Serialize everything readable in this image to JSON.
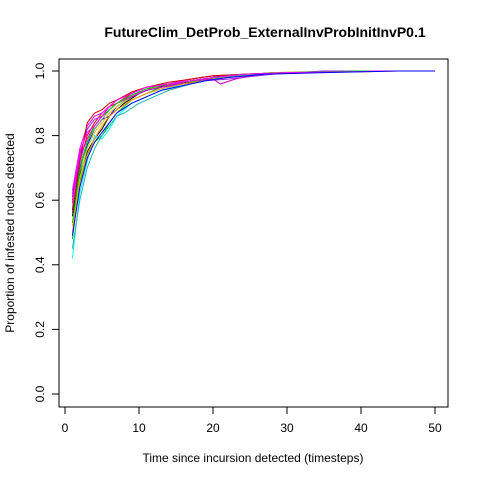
{
  "chart_data": {
    "type": "line",
    "title": "FutureClim_DetProb_ExternalInvProbInitInvP0.1",
    "xlabel": "Time since incursion detected (timesteps)",
    "ylabel": "Proportion of infested nodes detected",
    "xlim": [
      0,
      50
    ],
    "ylim": [
      0,
      1
    ],
    "xticks": [
      0,
      10,
      20,
      30,
      40,
      50
    ],
    "yticks": [
      0.0,
      0.2,
      0.4,
      0.6,
      0.8,
      1.0
    ],
    "ytick_labels": [
      "0.0",
      "0.2",
      "0.4",
      "0.6",
      "0.8",
      "1.0"
    ],
    "grid": false,
    "legend": "none",
    "series": [
      {
        "color": "#000000",
        "values": [
          [
            1,
            0.55
          ],
          [
            2,
            0.68
          ],
          [
            3,
            0.75
          ],
          [
            4,
            0.79
          ],
          [
            5,
            0.82
          ],
          [
            6,
            0.86
          ],
          [
            7,
            0.88
          ],
          [
            8,
            0.9
          ],
          [
            10,
            0.93
          ],
          [
            12,
            0.95
          ],
          [
            15,
            0.96
          ],
          [
            18,
            0.97
          ],
          [
            21,
            0.985
          ],
          [
            25,
            0.99
          ],
          [
            30,
            0.995
          ],
          [
            40,
            1.0
          ],
          [
            50,
            1.0
          ]
        ]
      },
      {
        "color": "#ff0000",
        "values": [
          [
            1,
            0.6
          ],
          [
            2,
            0.72
          ],
          [
            3,
            0.8
          ],
          [
            4,
            0.84
          ],
          [
            5,
            0.87
          ],
          [
            6,
            0.89
          ],
          [
            7,
            0.9
          ],
          [
            9,
            0.93
          ],
          [
            11,
            0.95
          ],
          [
            14,
            0.96
          ],
          [
            17,
            0.975
          ],
          [
            20,
            0.985
          ],
          [
            25,
            0.99
          ],
          [
            30,
            0.995
          ],
          [
            40,
            1.0
          ],
          [
            50,
            1.0
          ]
        ]
      },
      {
        "color": "#00cd00",
        "values": [
          [
            1,
            0.48
          ],
          [
            2,
            0.66
          ],
          [
            3,
            0.74
          ],
          [
            4,
            0.78
          ],
          [
            5,
            0.8
          ],
          [
            6,
            0.84
          ],
          [
            7,
            0.87
          ],
          [
            9,
            0.91
          ],
          [
            11,
            0.93
          ],
          [
            13,
            0.95
          ],
          [
            16,
            0.96
          ],
          [
            19,
            0.975
          ],
          [
            23,
            0.985
          ],
          [
            28,
            0.995
          ],
          [
            40,
            1.0
          ],
          [
            50,
            1.0
          ]
        ]
      },
      {
        "color": "#0000ff",
        "values": [
          [
            1,
            0.57
          ],
          [
            2,
            0.7
          ],
          [
            3,
            0.77
          ],
          [
            4,
            0.82
          ],
          [
            5,
            0.85
          ],
          [
            6,
            0.86
          ],
          [
            7,
            0.89
          ],
          [
            9,
            0.92
          ],
          [
            11,
            0.94
          ],
          [
            14,
            0.955
          ],
          [
            17,
            0.97
          ],
          [
            20,
            0.98
          ],
          [
            24,
            0.99
          ],
          [
            30,
            0.995
          ],
          [
            40,
            1.0
          ],
          [
            50,
            1.0
          ]
        ]
      },
      {
        "color": "#00ffff",
        "values": [
          [
            1,
            0.42
          ],
          [
            2,
            0.62
          ],
          [
            3,
            0.72
          ],
          [
            4,
            0.8
          ],
          [
            5,
            0.79
          ],
          [
            6,
            0.82
          ],
          [
            7,
            0.86
          ],
          [
            9,
            0.9
          ],
          [
            11,
            0.92
          ],
          [
            13,
            0.94
          ],
          [
            16,
            0.96
          ],
          [
            19,
            0.97
          ],
          [
            22,
            0.98
          ],
          [
            27,
            0.99
          ],
          [
            35,
            1.0
          ],
          [
            50,
            1.0
          ]
        ]
      },
      {
        "color": "#ff00ff",
        "values": [
          [
            1,
            0.63
          ],
          [
            2,
            0.76
          ],
          [
            3,
            0.83
          ],
          [
            4,
            0.86
          ],
          [
            5,
            0.87
          ],
          [
            6,
            0.89
          ],
          [
            7,
            0.91
          ],
          [
            9,
            0.93
          ],
          [
            11,
            0.95
          ],
          [
            14,
            0.96
          ],
          [
            17,
            0.975
          ],
          [
            20,
            0.985
          ],
          [
            25,
            0.99
          ],
          [
            32,
            0.995
          ],
          [
            40,
            1.0
          ],
          [
            50,
            1.0
          ]
        ]
      },
      {
        "color": "#cdcd00",
        "values": [
          [
            1,
            0.52
          ],
          [
            2,
            0.67
          ],
          [
            3,
            0.76
          ],
          [
            4,
            0.81
          ],
          [
            5,
            0.84
          ],
          [
            6,
            0.87
          ],
          [
            7,
            0.89
          ],
          [
            9,
            0.92
          ],
          [
            11,
            0.94
          ],
          [
            13,
            0.955
          ],
          [
            16,
            0.965
          ],
          [
            19,
            0.975
          ],
          [
            23,
            0.985
          ],
          [
            28,
            0.995
          ],
          [
            38,
            1.0
          ],
          [
            50,
            1.0
          ]
        ]
      },
      {
        "color": "#8a8a8a",
        "values": [
          [
            1,
            0.58
          ],
          [
            2,
            0.71
          ],
          [
            3,
            0.78
          ],
          [
            4,
            0.82
          ],
          [
            5,
            0.85
          ],
          [
            6,
            0.88
          ],
          [
            7,
            0.9
          ],
          [
            9,
            0.925
          ],
          [
            11,
            0.94
          ],
          [
            14,
            0.955
          ],
          [
            17,
            0.97
          ],
          [
            20,
            0.98
          ],
          [
            25,
            0.99
          ],
          [
            31,
            0.995
          ],
          [
            40,
            1.0
          ],
          [
            50,
            1.0
          ]
        ]
      },
      {
        "color": "#a020f0",
        "values": [
          [
            1,
            0.62
          ],
          [
            2,
            0.74
          ],
          [
            3,
            0.82
          ],
          [
            4,
            0.85
          ],
          [
            5,
            0.86
          ],
          [
            6,
            0.88
          ],
          [
            7,
            0.9
          ],
          [
            9,
            0.92
          ],
          [
            11,
            0.94
          ],
          [
            13,
            0.95
          ],
          [
            16,
            0.96
          ],
          [
            19,
            0.97
          ],
          [
            22,
            0.975
          ],
          [
            24,
            0.98
          ],
          [
            28,
            0.99
          ],
          [
            35,
            1.0
          ],
          [
            50,
            1.0
          ]
        ]
      },
      {
        "color": "#cd0000",
        "values": [
          [
            1,
            0.56
          ],
          [
            2,
            0.72
          ],
          [
            3,
            0.84
          ],
          [
            4,
            0.87
          ],
          [
            5,
            0.88
          ],
          [
            6,
            0.9
          ],
          [
            7,
            0.91
          ],
          [
            9,
            0.935
          ],
          [
            11,
            0.95
          ],
          [
            14,
            0.965
          ],
          [
            17,
            0.975
          ],
          [
            20,
            0.985
          ],
          [
            24,
            0.99
          ],
          [
            30,
            0.995
          ],
          [
            40,
            1.0
          ],
          [
            50,
            1.0
          ]
        ]
      },
      {
        "color": "#ff8c00",
        "values": [
          [
            1,
            0.5
          ],
          [
            2,
            0.65
          ],
          [
            3,
            0.74
          ],
          [
            4,
            0.79
          ],
          [
            5,
            0.83
          ],
          [
            6,
            0.86
          ],
          [
            7,
            0.88
          ],
          [
            9,
            0.91
          ],
          [
            11,
            0.93
          ],
          [
            13,
            0.945
          ],
          [
            16,
            0.96
          ],
          [
            19,
            0.97
          ],
          [
            22,
            0.98
          ],
          [
            27,
            0.99
          ],
          [
            34,
            0.995
          ],
          [
            45,
            1.0
          ],
          [
            50,
            1.0
          ]
        ]
      },
      {
        "color": "#20b2aa",
        "values": [
          [
            1,
            0.45
          ],
          [
            2,
            0.6
          ],
          [
            3,
            0.7
          ],
          [
            4,
            0.76
          ],
          [
            5,
            0.8
          ],
          [
            6,
            0.83
          ],
          [
            7,
            0.86
          ],
          [
            8,
            0.87
          ],
          [
            10,
            0.9
          ],
          [
            12,
            0.92
          ],
          [
            14,
            0.94
          ],
          [
            17,
            0.96
          ],
          [
            20,
            0.975
          ],
          [
            24,
            0.985
          ],
          [
            30,
            0.995
          ],
          [
            40,
            1.0
          ],
          [
            50,
            1.0
          ]
        ]
      },
      {
        "color": "#cd00cd",
        "values": [
          [
            1,
            0.61
          ],
          [
            2,
            0.73
          ],
          [
            3,
            0.79
          ],
          [
            4,
            0.83
          ],
          [
            5,
            0.86
          ],
          [
            6,
            0.88
          ],
          [
            7,
            0.9
          ],
          [
            9,
            0.92
          ],
          [
            11,
            0.94
          ],
          [
            14,
            0.955
          ],
          [
            17,
            0.97
          ],
          [
            20,
            0.975
          ],
          [
            21,
            0.96
          ],
          [
            23,
            0.975
          ],
          [
            26,
            0.99
          ],
          [
            32,
            0.995
          ],
          [
            40,
            1.0
          ],
          [
            50,
            1.0
          ]
        ]
      },
      {
        "color": "#00cd00",
        "values": [
          [
            1,
            0.53
          ],
          [
            2,
            0.69
          ],
          [
            3,
            0.78
          ],
          [
            4,
            0.83
          ],
          [
            5,
            0.86
          ],
          [
            6,
            0.88
          ],
          [
            7,
            0.9
          ],
          [
            9,
            0.925
          ],
          [
            11,
            0.945
          ],
          [
            14,
            0.96
          ],
          [
            17,
            0.97
          ],
          [
            20,
            0.98
          ],
          [
            24,
            0.99
          ],
          [
            30,
            0.995
          ],
          [
            40,
            1.0
          ],
          [
            50,
            1.0
          ]
        ]
      },
      {
        "color": "#ff00ff",
        "values": [
          [
            1,
            0.59
          ],
          [
            2,
            0.75
          ],
          [
            3,
            0.81
          ],
          [
            4,
            0.83
          ],
          [
            5,
            0.86
          ],
          [
            6,
            0.89
          ],
          [
            7,
            0.91
          ],
          [
            9,
            0.93
          ],
          [
            11,
            0.95
          ],
          [
            14,
            0.96
          ],
          [
            17,
            0.97
          ],
          [
            20,
            0.98
          ],
          [
            24,
            0.99
          ],
          [
            30,
            0.995
          ],
          [
            40,
            0.998
          ],
          [
            42,
            1.0
          ],
          [
            50,
            1.0
          ]
        ]
      },
      {
        "color": "#0000ff",
        "values": [
          [
            1,
            0.49
          ],
          [
            2,
            0.64
          ],
          [
            3,
            0.73
          ],
          [
            4,
            0.78
          ],
          [
            5,
            0.81
          ],
          [
            6,
            0.84
          ],
          [
            7,
            0.87
          ],
          [
            9,
            0.9
          ],
          [
            11,
            0.92
          ],
          [
            13,
            0.94
          ],
          [
            16,
            0.955
          ],
          [
            19,
            0.97
          ],
          [
            22,
            0.98
          ],
          [
            27,
            0.99
          ],
          [
            35,
            0.995
          ],
          [
            45,
            1.0
          ],
          [
            50,
            1.0
          ]
        ]
      }
    ]
  }
}
